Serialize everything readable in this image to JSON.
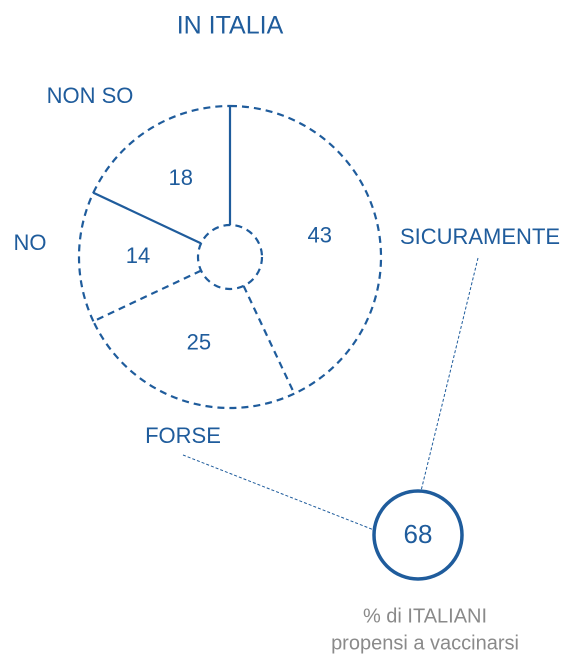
{
  "chart_data": {
    "type": "pie",
    "title": "IN ITALIA",
    "categories": [
      "SICURAMENTE",
      "FORSE",
      "NO",
      "NON SO"
    ],
    "values": [
      43,
      25,
      14,
      18
    ],
    "color": "#1f5c9c",
    "summary": {
      "value": 68,
      "caption": [
        "% di ITALIANI",
        "propensi a vaccinarsi"
      ]
    }
  }
}
